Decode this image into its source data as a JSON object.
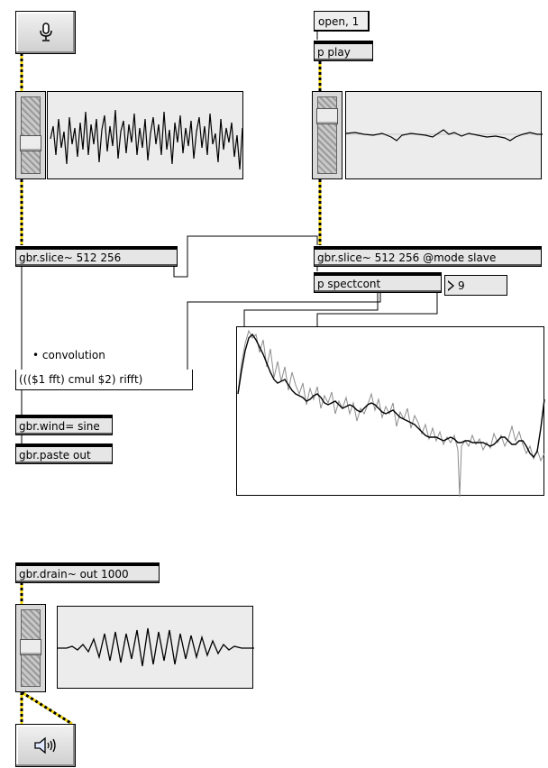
{
  "patcher": {
    "messages": {
      "open": "open, 1"
    },
    "objects": {
      "play": "p play",
      "slice_left": "gbr.slice~ 512 256",
      "slice_right": "gbr.slice~ 512 256 @mode slave",
      "spectcont": "p spectcont",
      "convolution_expr": "((($1 fft) cmul $2) rifft)",
      "wind": "gbr.wind= sine",
      "paste": "gbr.paste out",
      "drain": "gbr.drain~ out 1000"
    },
    "comments": {
      "convolution": "• convolution"
    },
    "number_box": {
      "value": "9"
    },
    "icons": {
      "mic_button": "microphone-icon",
      "speaker_button": "speaker-icon"
    },
    "colors": {
      "patch_cord_signal": "#f2d500",
      "patch_cord_signal_dash": "#000000",
      "patch_cord_control": "#000000",
      "object_fill": "#e6e6e6",
      "scope_fill": "#ececec"
    }
  }
}
